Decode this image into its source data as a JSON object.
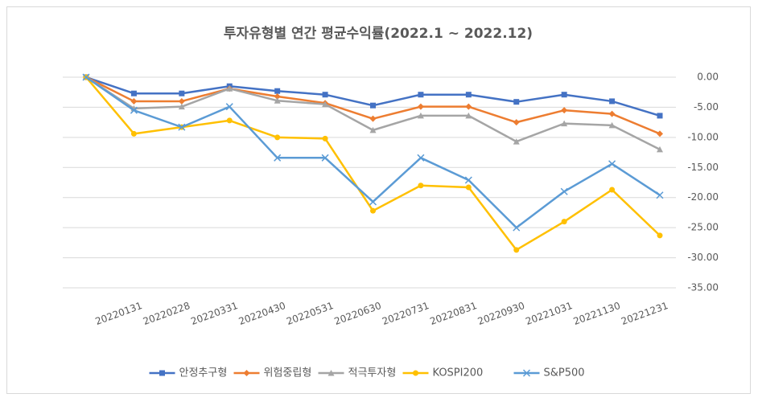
{
  "chart_data": {
    "type": "line",
    "title": "투자유형별 연간 평균수익률(2022.1 ~ 2022.12)",
    "categories": [
      null,
      "20220131",
      "20220228",
      "20220331",
      "20220430",
      "20220531",
      "20220630",
      "20220731",
      "20220831",
      "20220930",
      "20221031",
      "20221130",
      "20221231"
    ],
    "series": [
      {
        "name": "안정추구형",
        "color": "#4472c4",
        "marker": "square",
        "values": [
          0,
          -2.7,
          -2.7,
          -1.5,
          -2.3,
          -2.9,
          -4.7,
          -2.9,
          -2.9,
          -4.1,
          -2.9,
          -4.0,
          -6.4
        ]
      },
      {
        "name": "위험중립형",
        "color": "#ed7d31",
        "marker": "diamond",
        "values": [
          0,
          -4.0,
          -4.0,
          -1.9,
          -3.2,
          -4.3,
          -6.9,
          -4.9,
          -4.9,
          -7.5,
          -5.5,
          -6.1,
          -9.4
        ]
      },
      {
        "name": "적극투자형",
        "color": "#a5a5a5",
        "marker": "triangle",
        "values": [
          0,
          -5.2,
          -4.9,
          -1.9,
          -3.9,
          -4.5,
          -8.8,
          -6.4,
          -6.4,
          -10.7,
          -7.7,
          -8.0,
          -12.0
        ]
      },
      {
        "name": "KOSPI200",
        "color": "#ffc000",
        "marker": "circle",
        "values": [
          0,
          -9.4,
          -8.3,
          -7.2,
          -10.0,
          -10.2,
          -22.2,
          -18.0,
          -18.3,
          -28.7,
          -24.0,
          -18.7,
          -26.3
        ]
      },
      {
        "name": "S&P500",
        "color": "#5b9bd5",
        "marker": "x",
        "values": [
          0,
          -5.5,
          -8.3,
          -4.9,
          -13.4,
          -13.4,
          -20.7,
          -13.4,
          -17.1,
          -25.0,
          -19.0,
          -14.4,
          -19.6
        ]
      }
    ],
    "ylim": [
      -35,
      0
    ],
    "yticks": [
      {
        "value": 0,
        "label": "0.00"
      },
      {
        "value": -5,
        "label": "-5.00"
      },
      {
        "value": -10,
        "label": "-10.00"
      },
      {
        "value": -15,
        "label": "-15.00"
      },
      {
        "value": -20,
        "label": "-20.00"
      },
      {
        "value": -25,
        "label": "-25.00"
      },
      {
        "value": -30,
        "label": "-30.00"
      },
      {
        "value": -35,
        "label": "-35.00"
      }
    ],
    "grid": true,
    "legend": "bottom"
  }
}
